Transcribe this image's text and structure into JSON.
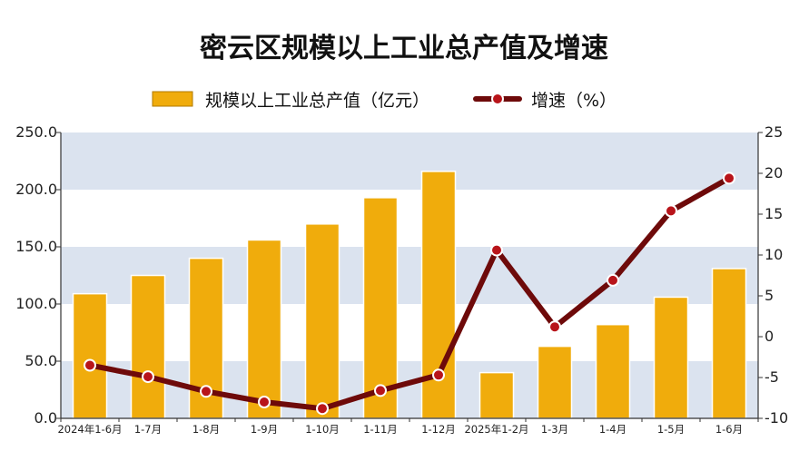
{
  "chart_data": {
    "type": "bar",
    "title": "密云区规模以上工业总产值及增速",
    "categories": [
      "2024年1-6月",
      "1-7月",
      "1-8月",
      "1-9月",
      "1-10月",
      "1-11月",
      "1-12月",
      "2025年1-2月",
      "1-3月",
      "1-4月",
      "1-5月",
      "1-6月"
    ],
    "series": [
      {
        "name": "规模以上工业总产值（亿元）",
        "type": "bar",
        "axis": "left",
        "color": "#f0ac0c",
        "values": [
          109,
          125,
          140,
          156,
          170,
          193,
          216,
          40,
          63,
          82,
          106,
          131
        ]
      },
      {
        "name": "增速（%）",
        "type": "line",
        "axis": "right",
        "color": "#6e0a0a",
        "values": [
          -3.5,
          -4.9,
          -6.7,
          -8.0,
          -8.8,
          -6.6,
          -4.7,
          10.6,
          1.2,
          6.9,
          15.4,
          19.4
        ]
      }
    ],
    "y_left": {
      "min": 0,
      "max": 250,
      "ticks": [
        "0.0",
        "50.0",
        "100.0",
        "150.0",
        "200.0",
        "250.0"
      ]
    },
    "y_right": {
      "min": -10,
      "max": 25,
      "ticks": [
        "-10",
        "-5",
        "0",
        "5",
        "10",
        "15",
        "20",
        "25"
      ]
    },
    "legend_position": "top-center",
    "band_colors": [
      "#dbe3ef",
      "#ffffff"
    ]
  }
}
